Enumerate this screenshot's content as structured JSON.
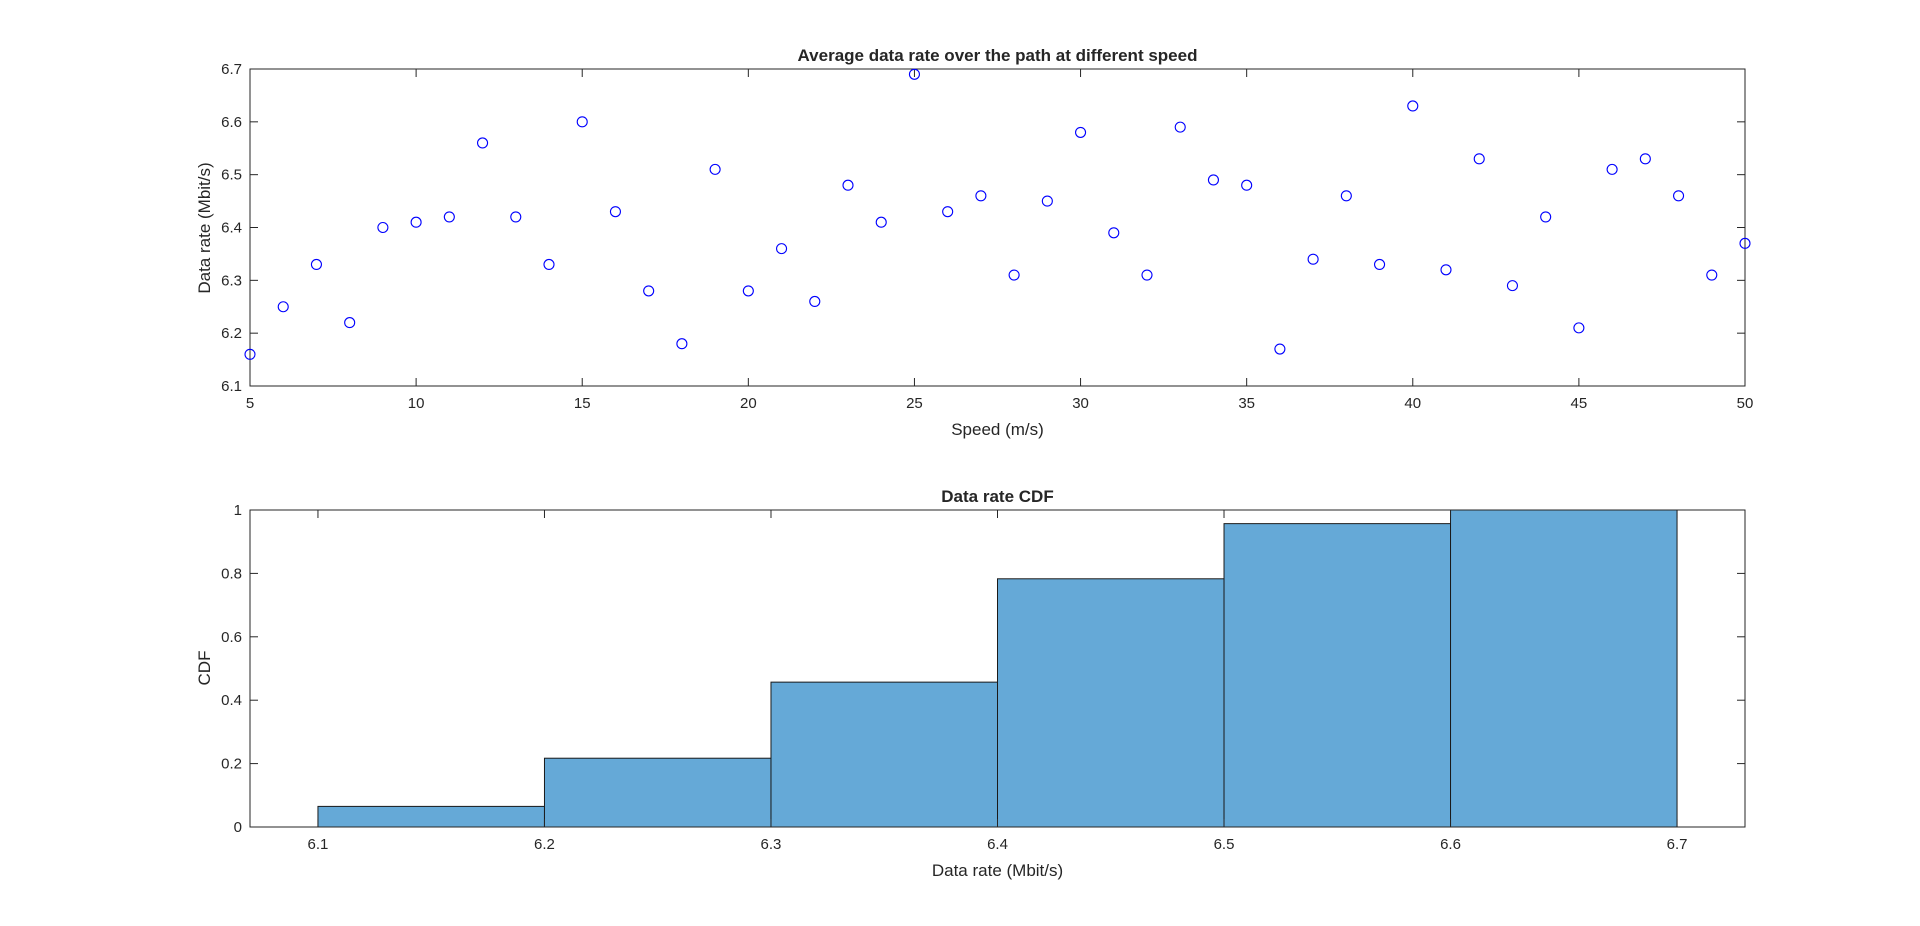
{
  "chart_data": [
    {
      "type": "scatter",
      "title": "Average data rate over the path at different speed",
      "xlabel": "Speed (m/s)",
      "ylabel": "Data rate (Mbit/s)",
      "xlim": [
        5,
        50
      ],
      "ylim": [
        6.1,
        6.7
      ],
      "xticks": [
        "5",
        "10",
        "15",
        "20",
        "25",
        "30",
        "35",
        "40",
        "45",
        "50"
      ],
      "yticks": [
        "6.1",
        "6.2",
        "6.3",
        "6.4",
        "6.5",
        "6.6",
        "6.7"
      ],
      "marker": "o",
      "marker_color": "#0000ff",
      "grid": false,
      "x": [
        5,
        6,
        7,
        8,
        9,
        10,
        11,
        12,
        13,
        14,
        15,
        16,
        17,
        18,
        19,
        20,
        21,
        22,
        23,
        24,
        25,
        26,
        27,
        28,
        29,
        30,
        31,
        32,
        33,
        34,
        35,
        36,
        37,
        38,
        39,
        40,
        41,
        42,
        43,
        44,
        45,
        46,
        47,
        48,
        49,
        50
      ],
      "y": [
        6.16,
        6.25,
        6.33,
        6.22,
        6.4,
        6.41,
        6.42,
        6.56,
        6.42,
        6.33,
        6.6,
        6.43,
        6.28,
        6.18,
        6.51,
        6.28,
        6.36,
        6.26,
        6.48,
        6.41,
        6.69,
        6.43,
        6.46,
        6.31,
        6.45,
        6.58,
        6.39,
        6.31,
        6.59,
        6.49,
        6.48,
        6.17,
        6.34,
        6.46,
        6.33,
        6.63,
        6.32,
        6.53,
        6.29,
        6.42,
        6.21,
        6.51,
        6.53,
        6.46,
        6.31,
        6.37
      ]
    },
    {
      "type": "bar",
      "title": "Data rate CDF",
      "xlabel": "Data rate (Mbit/s)",
      "ylabel": "CDF",
      "xlim": [
        6.07,
        6.73
      ],
      "ylim": [
        0,
        1
      ],
      "xticks": [
        "6.1",
        "6.2",
        "6.3",
        "6.4",
        "6.5",
        "6.6",
        "6.7"
      ],
      "yticks": [
        "0",
        "0.2",
        "0.4",
        "0.6",
        "0.8",
        "1"
      ],
      "bar_color": "#65a9d7",
      "grid": false,
      "bin_edges": [
        6.1,
        6.2,
        6.3,
        6.4,
        6.5,
        6.6,
        6.7
      ],
      "values": [
        0.065,
        0.217,
        0.457,
        0.783,
        0.957,
        1.0
      ]
    }
  ]
}
